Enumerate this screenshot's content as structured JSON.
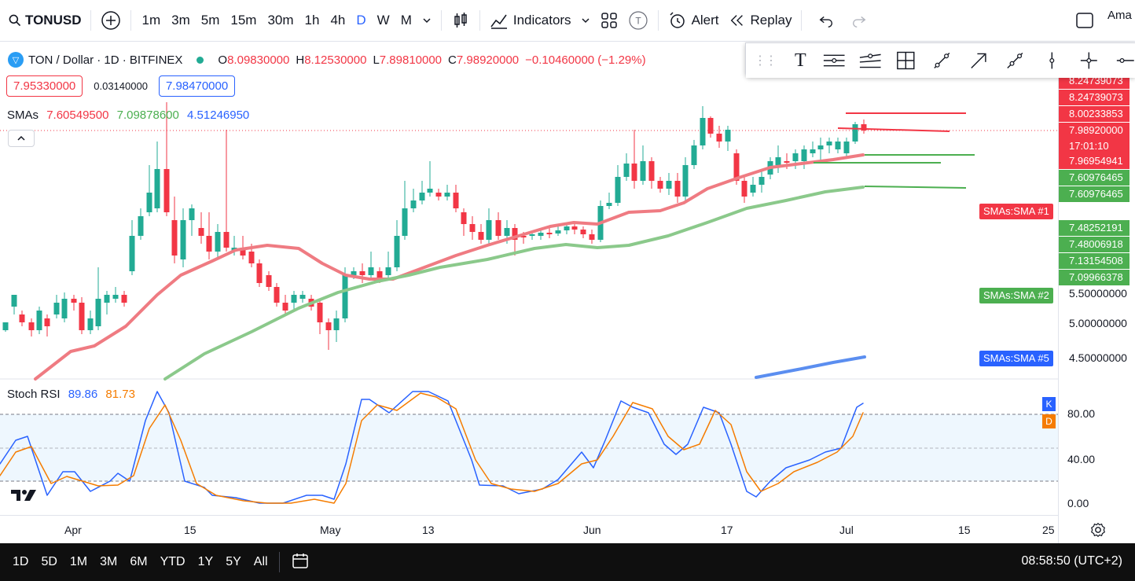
{
  "toolbar": {
    "symbol": "TONUSD",
    "intervals": [
      "1m",
      "3m",
      "5m",
      "15m",
      "30m",
      "1h",
      "4h",
      "D",
      "W",
      "M"
    ],
    "active_interval": "D",
    "indicators_label": "Indicators",
    "alert_label": "Alert",
    "replay_label": "Replay",
    "account_label": "Ama"
  },
  "legend": {
    "title": "TON / Dollar · 1D · BITFINEX",
    "open_label": "O",
    "open": "8.09830000",
    "high_label": "H",
    "high": "8.12530000",
    "low_label": "L",
    "low": "7.89810000",
    "close_label": "C",
    "close": "7.98920000",
    "change": "−0.10460000 (−1.29%)"
  },
  "trade": {
    "sell": "7.95330000",
    "spread": "0.03140000",
    "buy": "7.98470000"
  },
  "sma_legend": {
    "label": "SMAs",
    "v1": "7.60549500",
    "v2": "7.09878600",
    "v3": "4.51246950"
  },
  "stoch_legend": {
    "label": "Stoch RSI",
    "k": "89.86",
    "d": "81.73"
  },
  "price_scale": {
    "tags": [
      {
        "text": "8.24739073",
        "color": "#f23645"
      },
      {
        "text": "8.24739073",
        "color": "#f23645"
      },
      {
        "text": "8.00233853",
        "color": "#f23645"
      },
      {
        "text": "7.98920000",
        "color": "#f23645"
      },
      {
        "text": "17:01:10",
        "color": "#f23645"
      },
      {
        "text": "7.96954941",
        "color": "#f23645"
      },
      {
        "text": "7.60976465",
        "color": "#4caf50"
      },
      {
        "text": "7.60976465",
        "color": "#4caf50"
      },
      {
        "text": "7.48252191",
        "color": "#4caf50"
      },
      {
        "text": "7.48006918",
        "color": "#4caf50"
      },
      {
        "text": "7.13154508",
        "color": "#4caf50"
      },
      {
        "text": "7.09966378",
        "color": "#4caf50"
      }
    ],
    "levels": [
      "5.50000000",
      "5.00000000",
      "4.50000000"
    ],
    "stoch_levels": [
      "80.00",
      "40.00",
      "0.00"
    ],
    "sma_tags": [
      "SMAs:SMA #1",
      "SMAs:SMA #2",
      "SMAs:SMA #5"
    ],
    "k_label": "K",
    "d_label": "D"
  },
  "time_labels": [
    "Apr",
    "15",
    "May",
    "13",
    "Jun",
    "17",
    "Jul",
    "15",
    "25"
  ],
  "bottombar": {
    "ranges": [
      "1D",
      "5D",
      "1M",
      "3M",
      "6M",
      "YTD",
      "1Y",
      "5Y",
      "All"
    ],
    "clock": "08:58:50 (UTC+2)"
  },
  "colors": {
    "up": "#22ab94",
    "down": "#f23645",
    "sma1": "#ef7b82",
    "sma2": "#8bc98b",
    "sma3": "#5b8ef0",
    "stoch_k": "#2962ff",
    "stoch_d": "#f57c00"
  }
}
